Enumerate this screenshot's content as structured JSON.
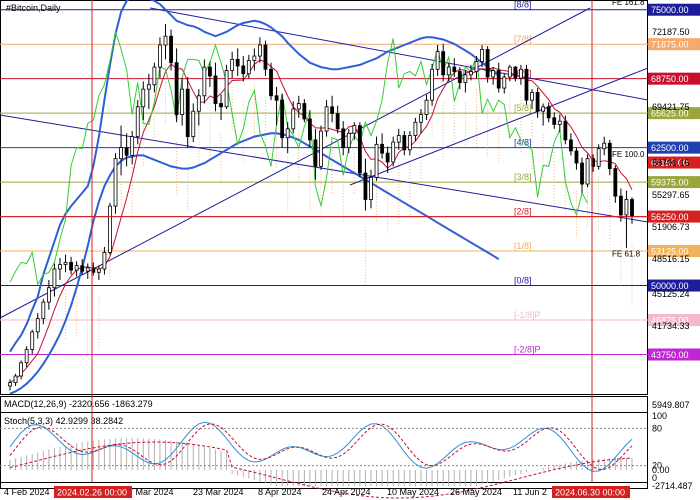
{
  "chart_data": {
    "type": "candlestick",
    "title": "#Bitcoin,Daily",
    "symbol": "#Bitcoin",
    "timeframe": "Daily",
    "x_tick_labels": [
      "4 Feb 2024",
      "7 Mar 2024",
      "23 Mar 2024",
      "8 Apr 2024",
      "24 Apr 2024",
      "10 May 2024",
      "26 May 2024",
      "11 Jun 2"
    ],
    "highlighted_dates": [
      "2024.02.26 00:00",
      "2024.06.30 00:00"
    ],
    "ylim": [
      40350,
      75700
    ],
    "price_scale_ticks": [
      "72187.50",
      "69421.75",
      "58791.15",
      "55297.65",
      "51906.73",
      "48516.15",
      "45125.24",
      "41734.33"
    ],
    "murrey_levels": [
      {
        "label": "[8/8]",
        "value": 75000,
        "price_text": "75000.00",
        "color": "#1d1d9b"
      },
      {
        "label": "[7/8]",
        "value": 71875,
        "price_text": "71875.00",
        "color": "#f5a96a"
      },
      {
        "label": "[6/8]",
        "value": 68750,
        "price_text": "68750.00",
        "color": "#c8102e"
      },
      {
        "label": "[5/8]",
        "value": 65625,
        "price_text": "65625.00",
        "color": "#9aa63a"
      },
      {
        "label": "[4/8]",
        "value": 62500,
        "price_text": "62500.00",
        "color": "#1f3fb2"
      },
      {
        "label": "[3/8]",
        "value": 59375,
        "price_text": "59375.00",
        "color": "#9aa63a"
      },
      {
        "label": "[2/8]",
        "value": 56250,
        "price_text": "56250.00",
        "color": "#d42020"
      },
      {
        "label": "[1/8]",
        "value": 53125,
        "price_text": "53125.00",
        "color": "#f0b25c"
      },
      {
        "label": "[0/8]",
        "value": 50000,
        "price_text": "50000.00",
        "color": "#1d1d9b"
      },
      {
        "label": "[-1/8]P",
        "value": 46875,
        "price_text": "46875.00",
        "color": "#f4b8c8"
      },
      {
        "label": "[-2/8]P",
        "value": 43750,
        "price_text": "43750.00",
        "color": "#c026d3"
      }
    ],
    "extra_price_tags": [
      {
        "value": 61150,
        "price_text": "61150.00",
        "color": "#d42020"
      }
    ],
    "last_price": 56250,
    "fibo_labels": [
      "FE 161.8",
      "FE 100.0",
      "FE 61.8"
    ],
    "candles": [
      [
        40900,
        41500,
        40500,
        41200
      ],
      [
        41200,
        42000,
        40900,
        41800
      ],
      [
        41800,
        43200,
        41500,
        43000
      ],
      [
        43000,
        44500,
        42600,
        44200
      ],
      [
        44200,
        46000,
        43800,
        45800
      ],
      [
        45800,
        47500,
        45200,
        47000
      ],
      [
        47000,
        48800,
        46500,
        48500
      ],
      [
        48500,
        50500,
        47800,
        49800
      ],
      [
        49800,
        52000,
        49000,
        51500
      ],
      [
        51500,
        52500,
        50500,
        51900
      ],
      [
        51900,
        52800,
        51200,
        52100
      ],
      [
        52100,
        52600,
        51000,
        51400
      ],
      [
        51400,
        52200,
        50800,
        51800
      ],
      [
        51800,
        52400,
        51000,
        51300
      ],
      [
        51300,
        52000,
        50600,
        51600
      ],
      [
        51600,
        52100,
        50900,
        51200
      ],
      [
        51200,
        51800,
        50500,
        51500
      ],
      [
        51500,
        53500,
        51000,
        53000
      ],
      [
        53000,
        57500,
        52800,
        57200
      ],
      [
        57200,
        62000,
        56500,
        61500
      ],
      [
        61500,
        64500,
        60000,
        62500
      ],
      [
        62500,
        63800,
        60800,
        61800
      ],
      [
        61800,
        64000,
        61000,
        63500
      ],
      [
        63500,
        66800,
        62800,
        66200
      ],
      [
        66200,
        68500,
        65000,
        67800
      ],
      [
        67800,
        69200,
        66000,
        68200
      ],
      [
        68200,
        70200,
        67500,
        69800
      ],
      [
        69800,
        72500,
        68800,
        71800
      ],
      [
        71800,
        73700,
        70500,
        72600
      ],
      [
        72600,
        73200,
        69500,
        70200
      ],
      [
        70200,
        71500,
        64800,
        65500
      ],
      [
        65500,
        68800,
        64500,
        67800
      ],
      [
        67800,
        68900,
        62500,
        63500
      ],
      [
        63500,
        66500,
        63000,
        65800
      ],
      [
        65800,
        67800,
        64500,
        67200
      ],
      [
        67200,
        70500,
        66500,
        69800
      ],
      [
        69800,
        70300,
        68000,
        69000
      ],
      [
        69000,
        70200,
        65800,
        66500
      ],
      [
        66500,
        67300,
        65000,
        66200
      ],
      [
        66200,
        70000,
        66000,
        69500
      ],
      [
        69500,
        71200,
        68800,
        70500
      ],
      [
        70500,
        71500,
        69000,
        69900
      ],
      [
        69900,
        70800,
        68500,
        69200
      ],
      [
        69200,
        70900,
        68800,
        70400
      ],
      [
        70400,
        71500,
        69500,
        70800
      ],
      [
        70800,
        72500,
        70200,
        71800
      ],
      [
        71800,
        72200,
        69000,
        69600
      ],
      [
        69600,
        70200,
        66800,
        67200
      ],
      [
        67200,
        68000,
        64500,
        66800
      ],
      [
        66800,
        67400,
        62500,
        63400
      ],
      [
        63400,
        64800,
        62000,
        64200
      ],
      [
        64200,
        66700,
        63800,
        66000
      ],
      [
        66000,
        67200,
        65200,
        66500
      ],
      [
        66500,
        66900,
        64800,
        65100
      ],
      [
        65100,
        65900,
        62500,
        63200
      ],
      [
        63200,
        64200,
        59600,
        60800
      ],
      [
        60800,
        64500,
        60500,
        64000
      ],
      [
        64000,
        66800,
        63500,
        66200
      ],
      [
        66200,
        67200,
        64800,
        65600
      ],
      [
        65600,
        66300,
        63800,
        64200
      ],
      [
        64200,
        64900,
        61800,
        62500
      ],
      [
        62500,
        64200,
        62000,
        63800
      ],
      [
        63800,
        64800,
        63200,
        64500
      ],
      [
        64500,
        64800,
        59800,
        60200
      ],
      [
        60200,
        61500,
        56800,
        57800
      ],
      [
        57800,
        60500,
        57000,
        59800
      ],
      [
        59800,
        63500,
        59500,
        62800
      ],
      [
        62800,
        63800,
        61500,
        62000
      ],
      [
        62000,
        62600,
        60200,
        61200
      ],
      [
        61200,
        63500,
        60800,
        63000
      ],
      [
        63000,
        64200,
        62300,
        63600
      ],
      [
        63600,
        64000,
        61800,
        62300
      ],
      [
        62300,
        64000,
        61800,
        63600
      ],
      [
        63600,
        65200,
        63100,
        64800
      ],
      [
        64800,
        66000,
        63800,
        65500
      ],
      [
        65500,
        67300,
        65000,
        66800
      ],
      [
        66800,
        70100,
        66300,
        69600
      ],
      [
        69600,
        71800,
        69000,
        71200
      ],
      [
        71200,
        71900,
        68500,
        69100
      ],
      [
        69100,
        70200,
        68500,
        69800
      ],
      [
        69800,
        70600,
        68900,
        69400
      ],
      [
        69400,
        69800,
        67800,
        68400
      ],
      [
        68400,
        69500,
        67500,
        69100
      ],
      [
        69100,
        70000,
        68600,
        69400
      ],
      [
        69400,
        70800,
        68800,
        70300
      ],
      [
        70300,
        71800,
        69800,
        71400
      ],
      [
        71400,
        71700,
        68400,
        68900
      ],
      [
        68900,
        69800,
        68200,
        69500
      ],
      [
        69500,
        70200,
        67500,
        67900
      ],
      [
        67900,
        69200,
        67400,
        68900
      ],
      [
        68900,
        70000,
        68500,
        69800
      ],
      [
        69800,
        69900,
        68500,
        68800
      ],
      [
        68800,
        70000,
        68200,
        69600
      ],
      [
        69600,
        70000,
        66400,
        66800
      ],
      [
        66800,
        67800,
        66000,
        67500
      ],
      [
        67500,
        67900,
        65200,
        65800
      ],
      [
        65800,
        66500,
        64500,
        66200
      ],
      [
        66200,
        66600,
        64800,
        65200
      ],
      [
        65200,
        65700,
        64200,
        64600
      ],
      [
        64600,
        65500,
        63900,
        64900
      ],
      [
        64900,
        65400,
        62800,
        63200
      ],
      [
        63200,
        63800,
        61800,
        62200
      ],
      [
        62200,
        62500,
        60500,
        61100
      ],
      [
        61100,
        61600,
        58400,
        59200
      ],
      [
        59200,
        61900,
        58900,
        61500
      ],
      [
        61500,
        61900,
        60300,
        60800
      ],
      [
        60800,
        62800,
        60500,
        62400
      ],
      [
        62400,
        63500,
        61800,
        62900
      ],
      [
        62900,
        63200,
        60000,
        60600
      ],
      [
        60600,
        60900,
        57500,
        58100
      ],
      [
        58100,
        58800,
        55800,
        56400
      ],
      [
        56400,
        58600,
        53400,
        57800
      ],
      [
        57800,
        58000,
        55600,
        56250
      ]
    ],
    "bollinger": {
      "upper": [
        44000,
        44800,
        45500,
        46500,
        47800,
        49000,
        51000,
        52500,
        54000,
        55500,
        56500,
        57200,
        57800,
        58400,
        59000,
        60800,
        63500,
        66800,
        70000,
        72800,
        74800,
        75800,
        76200,
        76500,
        76300,
        76000,
        75800,
        75500,
        75000,
        74500,
        74000,
        73800,
        73600,
        73500,
        73300,
        73000,
        72800,
        72600,
        72800,
        73000,
        73300,
        73600,
        73800,
        73900,
        74000,
        73900,
        73700,
        73400,
        73000,
        72600,
        72000,
        71500,
        71000,
        70600,
        70200,
        70000,
        69800,
        69700,
        69600,
        69600,
        69700,
        69800,
        69900,
        70000,
        70200,
        70400,
        70600,
        70900,
        71200,
        71400,
        71600,
        71800,
        72000,
        72200,
        72400,
        72500,
        72500,
        72400,
        72300,
        72100,
        71900,
        71600,
        71300,
        71000,
        70600,
        70200,
        69800,
        69400,
        69000
      ],
      "lower": [
        40200,
        40400,
        40700,
        41100,
        41600,
        42200,
        42900,
        43700,
        44600,
        45600,
        46800,
        48200,
        49800,
        51600,
        53600,
        55800,
        57600,
        59000,
        60000,
        60800,
        61300,
        61600,
        61700,
        61800,
        61800,
        61600,
        61400,
        61200,
        61000,
        60800,
        60700,
        60600,
        60600,
        60700,
        60900,
        61100,
        61400,
        61700,
        62000,
        62300,
        62600,
        62900,
        63100,
        63300,
        63500,
        63600,
        63700,
        63800,
        63800,
        63700,
        63600,
        63400,
        63200,
        62900,
        62600,
        62300,
        62000,
        61700,
        61400,
        61100,
        60800,
        60500,
        60200,
        59900,
        59600,
        59300,
        59000,
        58700,
        58400,
        58100,
        57800,
        57500,
        57200,
        56900,
        56600,
        56300,
        56000,
        55700,
        55400,
        55100,
        54800,
        54500,
        54200,
        53900,
        53600,
        53300,
        53000,
        52700,
        52400
      ]
    },
    "macd": {
      "label": "MACD(12,26,9) -2320.656 -1863.279",
      "ticks": [
        "5949.807",
        "0.00",
        "-2714.487"
      ]
    },
    "stochastic": {
      "label": "Stoch(5,3,3) 42.9299 38.2842",
      "ticks": [
        "100",
        "80",
        "20",
        "0"
      ]
    }
  }
}
